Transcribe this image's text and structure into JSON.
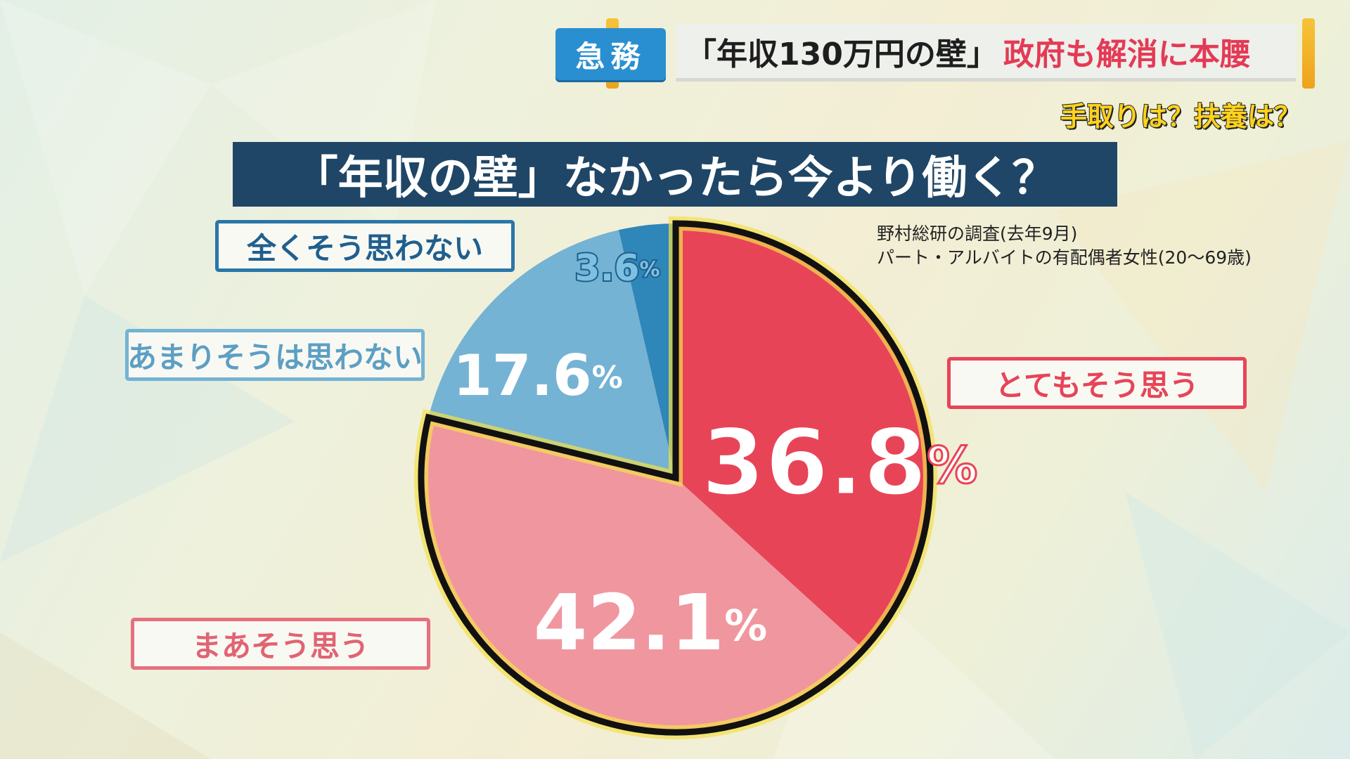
{
  "header": {
    "tag": "急務",
    "headline_black": "「年収130万円の壁」",
    "headline_red": "政府も解消に本腰",
    "subheadline": "手取りは？扶養は？"
  },
  "source": {
    "line1": "野村総研の調査(去年9月)",
    "line2": "パート・アルバイトの有配偶者女性(20〜69歳)"
  },
  "chart_data": {
    "type": "pie",
    "title": "「年収の壁」なかったら今より働く？",
    "start": "12 o'clock",
    "direction": "clockwise",
    "slices": [
      {
        "label": "とてもそう思う",
        "value": 36.8,
        "display": "36.8",
        "color": "#e84458",
        "highlighted": true
      },
      {
        "label": "まあそう思う",
        "value": 42.1,
        "display": "42.1",
        "color": "#f0969f",
        "highlighted": true
      },
      {
        "label": "あまりそうは思わない",
        "value": 17.6,
        "display": "17.6",
        "color": "#74b3d3",
        "highlighted": false
      },
      {
        "label": "全くそう思わない",
        "value": 3.6,
        "display": "3.6",
        "color": "#2f86b8",
        "highlighted": false
      }
    ],
    "unit": "%"
  }
}
